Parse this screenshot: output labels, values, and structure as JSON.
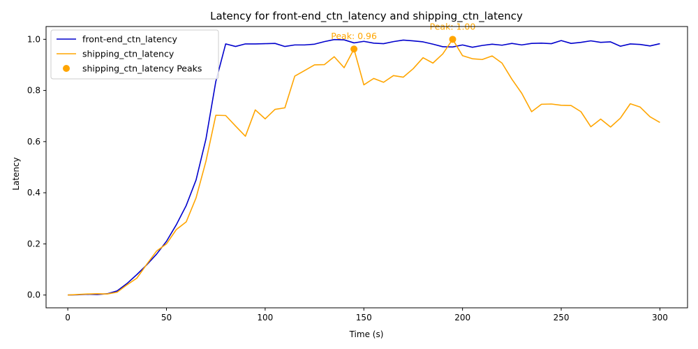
{
  "chart_data": {
    "type": "line",
    "title": "Latency for front-end_ctn_latency and shipping_ctn_latency",
    "xlabel": "Time (s)",
    "ylabel": "Latency",
    "xlim": [
      -11,
      314
    ],
    "ylim": [
      -0.05,
      1.05
    ],
    "xticks": [
      0,
      50,
      100,
      150,
      200,
      250,
      300
    ],
    "yticks": [
      0.0,
      0.2,
      0.4,
      0.6,
      0.8,
      1.0
    ],
    "x": [
      0,
      5,
      10,
      15,
      20,
      25,
      30,
      35,
      40,
      45,
      50,
      55,
      60,
      65,
      70,
      75,
      80,
      85,
      90,
      95,
      100,
      105,
      110,
      115,
      120,
      125,
      130,
      135,
      140,
      145,
      150,
      155,
      160,
      165,
      170,
      175,
      180,
      185,
      190,
      195,
      200,
      205,
      210,
      215,
      220,
      225,
      230,
      235,
      240,
      245,
      250,
      255,
      260,
      265,
      270,
      275,
      280,
      285,
      290,
      295,
      300
    ],
    "legend_position": "upper-left",
    "series": [
      {
        "name": "front-end_ctn_latency",
        "color": "#0000cc",
        "values": [
          0.0,
          0.001,
          0.003,
          0.002,
          0.005,
          0.016,
          0.045,
          0.08,
          0.118,
          0.16,
          0.21,
          0.275,
          0.35,
          0.45,
          0.61,
          0.835,
          0.982,
          0.972,
          0.982,
          0.982,
          0.983,
          0.984,
          0.972,
          0.978,
          0.978,
          0.981,
          0.991,
          0.999,
          0.998,
          0.986,
          0.992,
          0.985,
          0.983,
          0.991,
          0.997,
          0.994,
          0.99,
          0.981,
          0.971,
          0.97,
          0.978,
          0.969,
          0.976,
          0.981,
          0.977,
          0.984,
          0.978,
          0.984,
          0.985,
          0.983,
          0.995,
          0.984,
          0.988,
          0.994,
          0.988,
          0.99,
          0.973,
          0.982,
          0.98,
          0.974,
          0.983
        ]
      },
      {
        "name": "shipping_ctn_latency",
        "color": "#ffa500",
        "values": [
          0.0,
          0.002,
          0.004,
          0.005,
          0.004,
          0.011,
          0.04,
          0.066,
          0.12,
          0.172,
          0.2,
          0.256,
          0.286,
          0.38,
          0.523,
          0.703,
          0.702,
          0.661,
          0.621,
          0.724,
          0.689,
          0.726,
          0.732,
          0.856,
          0.878,
          0.9,
          0.901,
          0.932,
          0.889,
          0.962,
          0.822,
          0.847,
          0.832,
          0.858,
          0.852,
          0.885,
          0.928,
          0.907,
          0.943,
          1.0,
          0.936,
          0.924,
          0.921,
          0.935,
          0.907,
          0.844,
          0.789,
          0.717,
          0.746,
          0.747,
          0.742,
          0.741,
          0.717,
          0.658,
          0.688,
          0.657,
          0.692,
          0.748,
          0.735,
          0.697,
          0.675
        ]
      }
    ],
    "peaks": {
      "name": "shipping_ctn_latency Peaks",
      "color": "#ffa500",
      "points": [
        {
          "x": 145,
          "y": 0.962,
          "label": "Peak: 0.96"
        },
        {
          "x": 195,
          "y": 1.0,
          "label": "Peak: 1.00"
        }
      ]
    }
  }
}
